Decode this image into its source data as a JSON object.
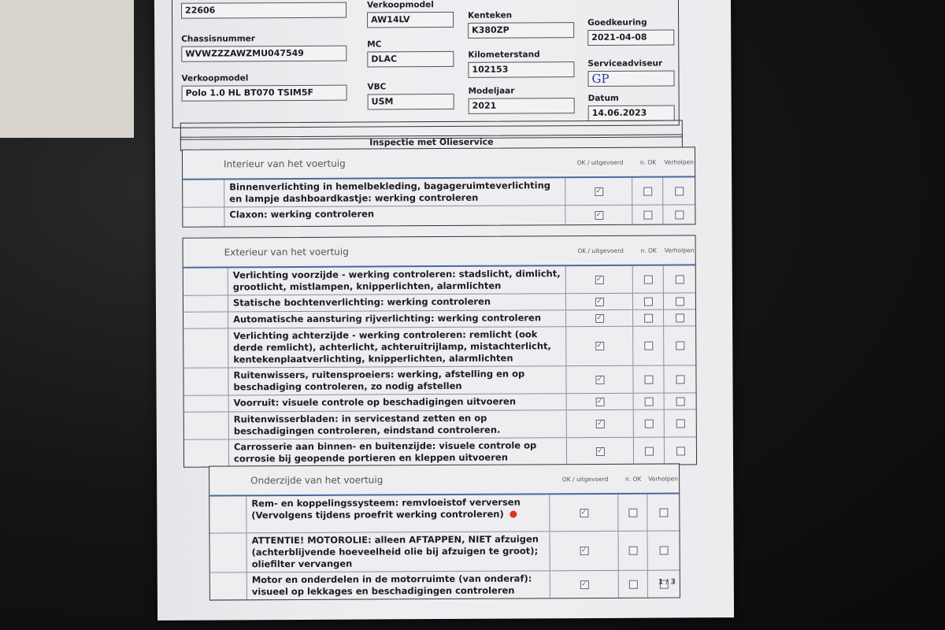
{
  "vehicle": {
    "fields": [
      {
        "label": "",
        "value": "22606"
      },
      {
        "label": "Chassisnummer",
        "value": "WVWZZZAWZMU047549"
      },
      {
        "label": "Verkoopmodel",
        "value": "Polo 1.0 HL BT070 TSIM5F"
      },
      {
        "label": "Verkoopmodel",
        "value": "AW14LV"
      },
      {
        "label": "MC",
        "value": "DLAC"
      },
      {
        "label": "VBC",
        "value": "USM"
      },
      {
        "label": "Kenteken",
        "value": "K380ZP"
      },
      {
        "label": "Kilometerstand",
        "value": "102153"
      },
      {
        "label": "Modeljaar",
        "value": "2021"
      },
      {
        "label": "Goedkeuring",
        "value": "2021-04-08"
      },
      {
        "label": "Serviceadviseur",
        "value": "GP"
      },
      {
        "label": "Datum",
        "value": "14.06.2023"
      }
    ]
  },
  "title": "Inspectie met Olieservice",
  "columns": {
    "ok": "OK / uitgevoerd",
    "nok": "n. OK",
    "fix": "Verholpen"
  },
  "sections": [
    {
      "title": "Interieur van het voertuig",
      "items": [
        {
          "text": "Binnenverlichting in hemelbekleding, bagageruimteverlichting en lampje dashboardkastje: werking controleren",
          "ok": true,
          "nok": false,
          "fix": false
        },
        {
          "text": "Claxon: werking controleren",
          "ok": true,
          "nok": false,
          "fix": false
        }
      ]
    },
    {
      "title": "Exterieur van het voertuig",
      "items": [
        {
          "text": "Verlichting voorzijde - werking controleren: stadslicht, dimlicht, grootlicht, mistlampen, knipperlichten, alarmlichten",
          "ok": true,
          "nok": false,
          "fix": false
        },
        {
          "text": "Statische bochtenverlichting: werking controleren",
          "ok": true,
          "nok": false,
          "fix": false
        },
        {
          "text": "Automatische aansturing rijverlichting: werking controleren",
          "ok": true,
          "nok": false,
          "fix": false
        },
        {
          "text": "Verlichting achterzijde - werking controleren: remlicht (ook derde remlicht), achterlicht, achteruitrijlamp, mistachterlicht, kentekenplaatverlichting, knipperlichten, alarmlichten",
          "ok": true,
          "nok": false,
          "fix": false
        },
        {
          "text": "Ruitenwissers, ruitensproeiers: werking, afstelling en op beschadiging controleren, zo nodig afstellen",
          "ok": true,
          "nok": false,
          "fix": false
        },
        {
          "text": "Voorruit: visuele controle op beschadigingen uitvoeren",
          "ok": true,
          "nok": false,
          "fix": false
        },
        {
          "text": "Ruitenwisserbladen: in servicestand zetten en op beschadigingen controleren, eindstand controleren.",
          "ok": true,
          "nok": false,
          "fix": false
        },
        {
          "text": "Carrosserie aan binnen- en buitenzijde: visuele controle op corrosie bij geopende portieren en kleppen uitvoeren",
          "ok": true,
          "nok": false,
          "fix": false
        }
      ]
    },
    {
      "title": "Onderzijde van het voertuig",
      "items": [
        {
          "text": "Rem- en koppelingssysteem: remvloeistof verversen (Vervolgens tijdens proefrit werking controleren)",
          "ok": true,
          "nok": false,
          "fix": false,
          "marker": true
        },
        {
          "text": "ATTENTIE! MOTOROLIE: alleen AFTAPPEN, NIET afzuigen (achterblijvende hoeveelheid olie bij afzuigen te groot); oliefilter vervangen",
          "ok": true,
          "nok": false,
          "fix": false
        },
        {
          "text": "Motor en onderdelen in de motorruimte (van onderaf): visueel op lekkages en beschadigingen controleren",
          "ok": true,
          "nok": false,
          "fix": false
        }
      ]
    }
  ],
  "page": "1 / 3",
  "colors": {
    "check": "#1a8a3a",
    "rule": "#4a6a9a",
    "marker": "#d8352a"
  }
}
